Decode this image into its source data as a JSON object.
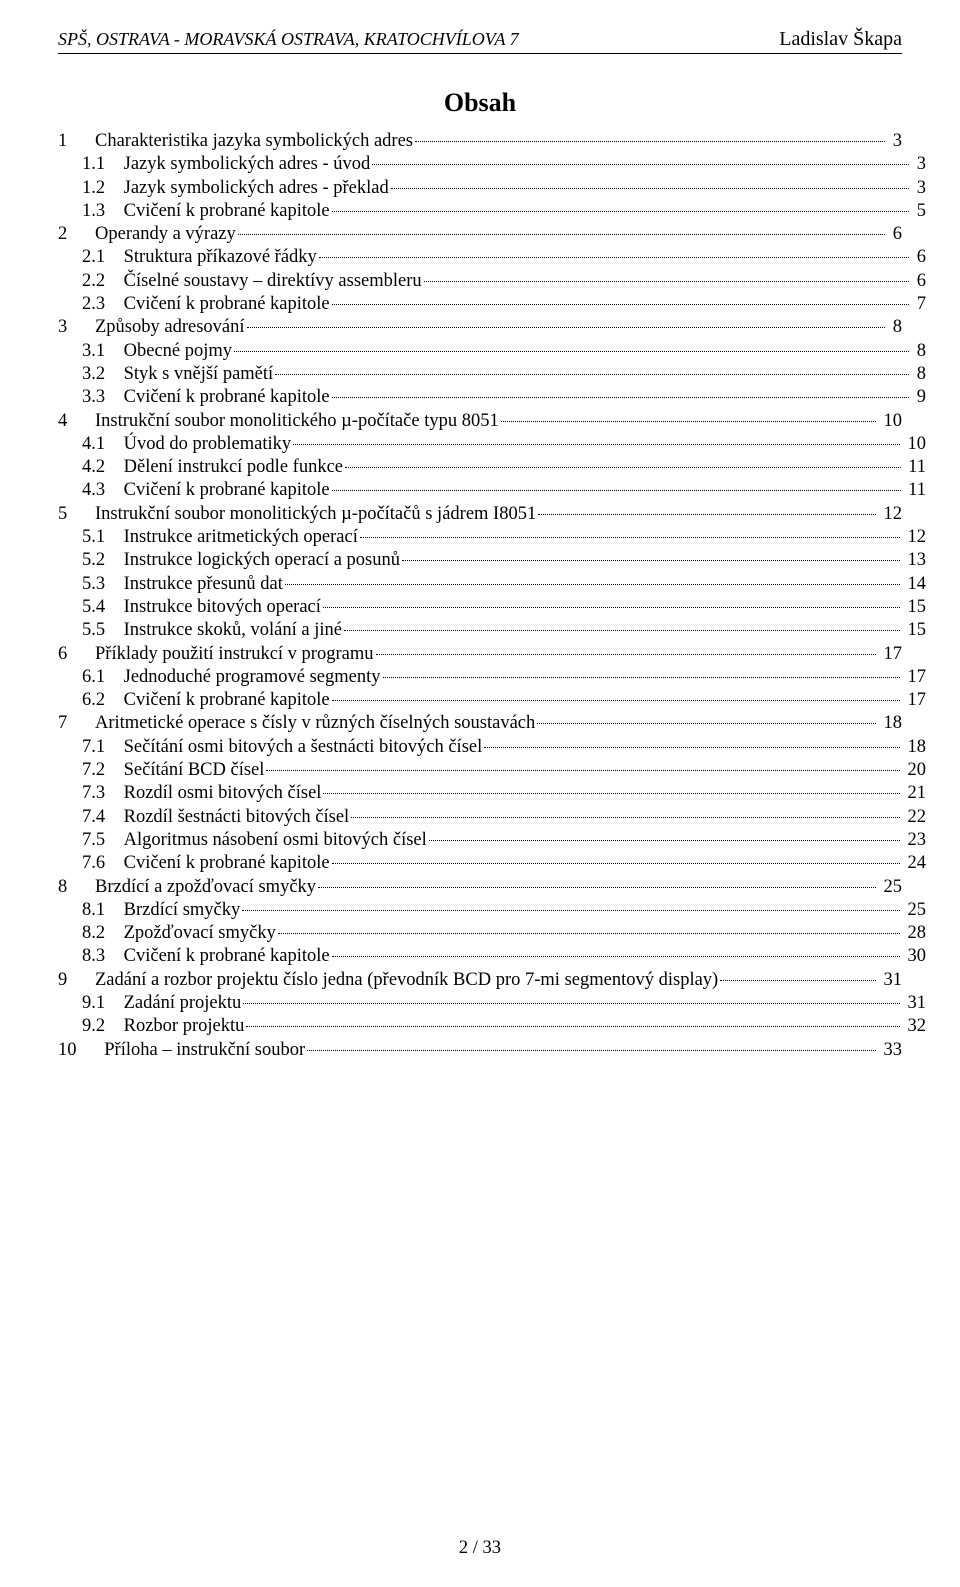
{
  "header": {
    "left": "SPŠ, OSTRAVA - MORAVSKÁ OSTRAVA, KRATOCHVÍLOVA 7",
    "right": "Ladislav Škapa"
  },
  "title": "Obsah",
  "toc": [
    {
      "level": 1,
      "num": "1",
      "text": "Charakteristika jazyka symbolických adres",
      "page": "3"
    },
    {
      "level": 2,
      "num": "1.1",
      "text": "Jazyk symbolických adres - úvod",
      "page": "3"
    },
    {
      "level": 2,
      "num": "1.2",
      "text": "Jazyk symbolických adres - překlad",
      "page": "3"
    },
    {
      "level": 2,
      "num": "1.3",
      "text": "Cvičení k probrané kapitole",
      "page": "5"
    },
    {
      "level": 1,
      "num": "2",
      "text": "Operandy a výrazy",
      "page": "6"
    },
    {
      "level": 2,
      "num": "2.1",
      "text": "Struktura příkazové řádky",
      "page": "6"
    },
    {
      "level": 2,
      "num": "2.2",
      "text": "Číselné soustavy – direktívy assembleru",
      "page": "6"
    },
    {
      "level": 2,
      "num": "2.3",
      "text": "Cvičení k probrané kapitole",
      "page": "7"
    },
    {
      "level": 1,
      "num": "3",
      "text": "Způsoby adresování",
      "page": "8"
    },
    {
      "level": 2,
      "num": "3.1",
      "text": "Obecné pojmy",
      "page": "8"
    },
    {
      "level": 2,
      "num": "3.2",
      "text": "Styk s vnější pamětí",
      "page": "8"
    },
    {
      "level": 2,
      "num": "3.3",
      "text": "Cvičení k probrané kapitole",
      "page": "9"
    },
    {
      "level": 1,
      "num": "4",
      "text": "Instrukční soubor monolitického µ-počítače typu 8051",
      "page": "10"
    },
    {
      "level": 2,
      "num": "4.1",
      "text": "Úvod do problematiky",
      "page": "10"
    },
    {
      "level": 2,
      "num": "4.2",
      "text": "Dělení instrukcí podle funkce",
      "page": "11"
    },
    {
      "level": 2,
      "num": "4.3",
      "text": "Cvičení k probrané kapitole",
      "page": "11"
    },
    {
      "level": 1,
      "num": "5",
      "text": "Instrukční soubor monolitických µ-počítačů s jádrem I8051",
      "page": "12"
    },
    {
      "level": 2,
      "num": "5.1",
      "text": "Instrukce aritmetických operací",
      "page": "12"
    },
    {
      "level": 2,
      "num": "5.2",
      "text": "Instrukce logických operací a posunů",
      "page": "13"
    },
    {
      "level": 2,
      "num": "5.3",
      "text": "Instrukce přesunů dat",
      "page": "14"
    },
    {
      "level": 2,
      "num": "5.4",
      "text": "Instrukce bitových operací",
      "page": "15"
    },
    {
      "level": 2,
      "num": "5.5",
      "text": "Instrukce skoků, volání a jiné",
      "page": "15"
    },
    {
      "level": 1,
      "num": "6",
      "text": "Příklady použití instrukcí v programu",
      "page": "17"
    },
    {
      "level": 2,
      "num": "6.1",
      "text": "Jednoduché programové segmenty",
      "page": "17"
    },
    {
      "level": 2,
      "num": "6.2",
      "text": "Cvičení k probrané kapitole",
      "page": "17"
    },
    {
      "level": 1,
      "num": "7",
      "text": "Aritmetické operace s čísly v různých číselných soustavách",
      "page": "18"
    },
    {
      "level": 2,
      "num": "7.1",
      "text": "Sečítání osmi bitových a šestnácti bitových čísel",
      "page": "18"
    },
    {
      "level": 2,
      "num": "7.2",
      "text": "Sečítání BCD čísel",
      "page": "20"
    },
    {
      "level": 2,
      "num": "7.3",
      "text": "Rozdíl osmi bitových čísel",
      "page": "21"
    },
    {
      "level": 2,
      "num": "7.4",
      "text": "Rozdíl šestnácti bitových čísel",
      "page": "22"
    },
    {
      "level": 2,
      "num": "7.5",
      "text": "Algoritmus násobení osmi bitových čísel",
      "page": "23"
    },
    {
      "level": 2,
      "num": "7.6",
      "text": "Cvičení k probrané kapitole",
      "page": "24"
    },
    {
      "level": 1,
      "num": "8",
      "text": "Brzdící a zpožďovací smyčky",
      "page": "25"
    },
    {
      "level": 2,
      "num": "8.1",
      "text": "Brzdící smyčky",
      "page": "25"
    },
    {
      "level": 2,
      "num": "8.2",
      "text": "Zpožďovací smyčky",
      "page": "28"
    },
    {
      "level": 2,
      "num": "8.3",
      "text": "Cvičení k probrané kapitole",
      "page": "30"
    },
    {
      "level": 1,
      "num": "9",
      "text": "Zadání a rozbor projektu číslo jedna (převodník BCD pro 7-mi segmentový display)",
      "page": "31"
    },
    {
      "level": 2,
      "num": "9.1",
      "text": "Zadání projektu",
      "page": "31"
    },
    {
      "level": 2,
      "num": "9.2",
      "text": "Rozbor projektu",
      "page": "32"
    },
    {
      "level": 1,
      "num": "10",
      "text": "Příloha – instrukční soubor",
      "page": "33"
    }
  ],
  "footer": "2 / 33"
}
